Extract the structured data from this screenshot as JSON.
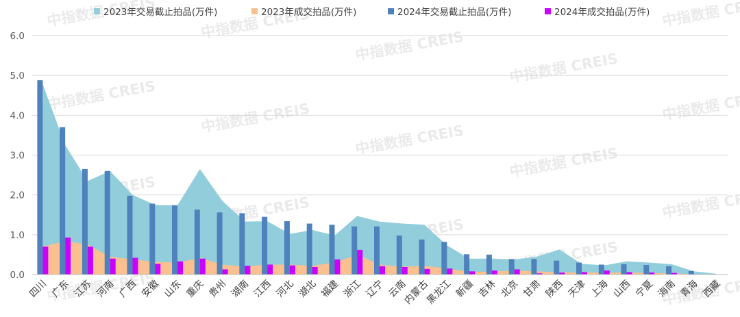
{
  "chart_data": {
    "type": "area",
    "categories": [
      "四川",
      "广东",
      "江苏",
      "河南",
      "广西",
      "安徽",
      "山东",
      "重庆",
      "贵州",
      "湖南",
      "江西",
      "河北",
      "湖北",
      "福建",
      "浙江",
      "辽宁",
      "云南",
      "内蒙古",
      "黑龙江",
      "新疆",
      "吉林",
      "北京",
      "甘肃",
      "陕西",
      "天津",
      "上海",
      "山西",
      "宁夏",
      "海南",
      "青海",
      "西藏"
    ],
    "ylim": [
      0,
      6.0
    ],
    "yticks": [
      "0.0",
      "1.0",
      "2.0",
      "3.0",
      "4.0",
      "5.0",
      "6.0"
    ],
    "grid": true,
    "legend_position": "top",
    "series": [
      {
        "name": "2023年交易截止拍品(万件)",
        "kind": "area",
        "color": "#92cddc",
        "values": [
          4.78,
          3.25,
          2.35,
          2.6,
          2.0,
          1.75,
          1.74,
          2.65,
          1.85,
          1.33,
          1.34,
          1.02,
          1.12,
          0.98,
          1.47,
          1.33,
          1.28,
          1.25,
          0.73,
          0.4,
          0.4,
          0.38,
          0.45,
          0.63,
          0.27,
          0.23,
          0.33,
          0.3,
          0.26,
          0.08,
          0.02
        ]
      },
      {
        "name": "2023年成交拍品(万件)",
        "kind": "area",
        "color": "#fac090",
        "values": [
          0.7,
          0.84,
          0.75,
          0.45,
          0.38,
          0.32,
          0.3,
          0.42,
          0.25,
          0.2,
          0.25,
          0.25,
          0.22,
          0.3,
          0.5,
          0.25,
          0.2,
          0.22,
          0.15,
          0.07,
          0.07,
          0.1,
          0.08,
          0.06,
          0.05,
          0.05,
          0.05,
          0.04,
          0.03,
          0.01,
          0.0
        ]
      },
      {
        "name": "2024年交易截止拍品(万件)",
        "kind": "bar",
        "color": "#4f81bd",
        "values": [
          4.88,
          3.7,
          2.65,
          2.6,
          1.98,
          1.78,
          1.74,
          1.63,
          1.56,
          1.54,
          1.45,
          1.34,
          1.28,
          1.25,
          1.21,
          1.21,
          0.98,
          0.88,
          0.82,
          0.51,
          0.5,
          0.39,
          0.39,
          0.35,
          0.3,
          0.25,
          0.26,
          0.24,
          0.21,
          0.09,
          0.01
        ]
      },
      {
        "name": "2024年成交拍品(万件)",
        "kind": "bar",
        "color": "#cc00ff",
        "values": [
          0.7,
          0.93,
          0.7,
          0.4,
          0.42,
          0.27,
          0.33,
          0.4,
          0.13,
          0.22,
          0.25,
          0.23,
          0.19,
          0.38,
          0.62,
          0.21,
          0.19,
          0.14,
          0.15,
          0.08,
          0.1,
          0.13,
          0.03,
          0.05,
          0.06,
          0.1,
          0.06,
          0.05,
          0.04,
          0.01,
          0.0
        ]
      }
    ],
    "watermark": "中指数据 CREIS"
  }
}
